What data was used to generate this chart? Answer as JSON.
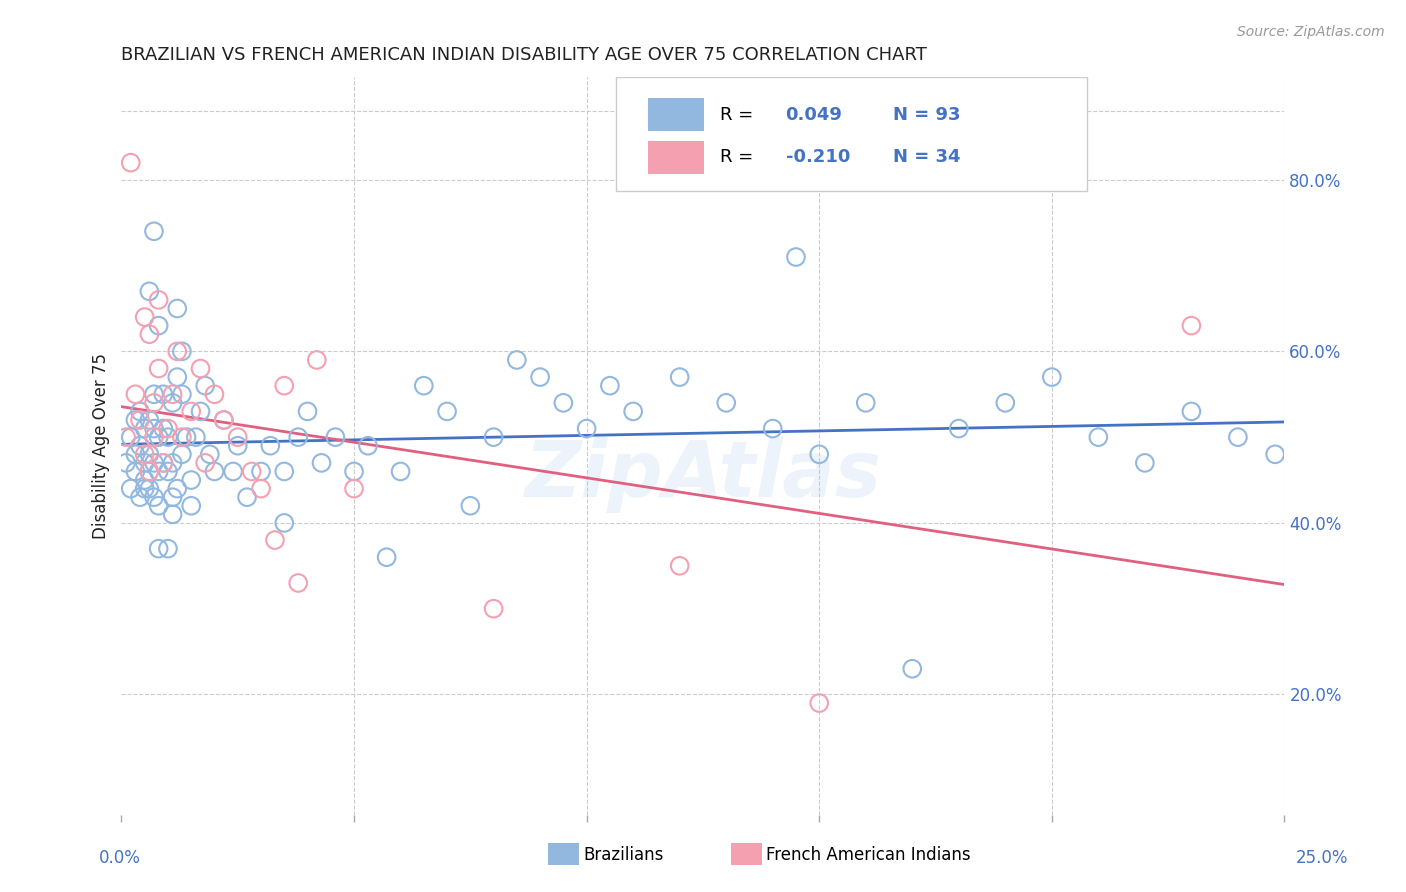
{
  "title": "BRAZILIAN VS FRENCH AMERICAN INDIAN DISABILITY AGE OVER 75 CORRELATION CHART",
  "source": "Source: ZipAtlas.com",
  "ylabel": "Disability Age Over 75",
  "watermark": "ZipAtlas",
  "legend_r_blue": "R =  0.049",
  "legend_n_blue": "N = 93",
  "legend_r_pink": "R = -0.210",
  "legend_n_pink": "N = 34",
  "blue_color": "#93B8E0",
  "pink_color": "#F4A0B0",
  "blue_line_color": "#4472C4",
  "pink_line_color": "#E06080",
  "legend_text_color": "#4472C4",
  "title_color": "#222222",
  "source_color": "#999999",
  "axis_color": "#4472C4",
  "grid_color": "#CCCCCC",
  "background_color": "#FFFFFF",
  "xlim": [
    0.0,
    0.25
  ],
  "ylim": [
    0.06,
    0.92
  ],
  "blue_x": [
    0.001,
    0.002,
    0.002,
    0.003,
    0.003,
    0.003,
    0.004,
    0.004,
    0.004,
    0.005,
    0.005,
    0.005,
    0.005,
    0.006,
    0.006,
    0.006,
    0.006,
    0.007,
    0.007,
    0.007,
    0.007,
    0.008,
    0.008,
    0.008,
    0.009,
    0.009,
    0.01,
    0.01,
    0.011,
    0.011,
    0.011,
    0.012,
    0.012,
    0.013,
    0.013,
    0.014,
    0.015,
    0.015,
    0.016,
    0.017,
    0.018,
    0.019,
    0.02,
    0.022,
    0.024,
    0.025,
    0.027,
    0.03,
    0.032,
    0.035,
    0.038,
    0.04,
    0.043,
    0.046,
    0.05,
    0.053,
    0.057,
    0.06,
    0.065,
    0.07,
    0.075,
    0.08,
    0.085,
    0.09,
    0.095,
    0.1,
    0.105,
    0.11,
    0.12,
    0.13,
    0.14,
    0.15,
    0.16,
    0.17,
    0.18,
    0.19,
    0.2,
    0.21,
    0.22,
    0.23,
    0.24,
    0.248,
    0.035,
    0.008,
    0.006,
    0.007,
    0.008,
    0.009,
    0.01,
    0.011,
    0.012,
    0.013,
    0.145
  ],
  "blue_y": [
    0.47,
    0.5,
    0.44,
    0.48,
    0.52,
    0.46,
    0.43,
    0.49,
    0.53,
    0.44,
    0.47,
    0.51,
    0.45,
    0.44,
    0.48,
    0.52,
    0.46,
    0.43,
    0.47,
    0.51,
    0.55,
    0.46,
    0.5,
    0.42,
    0.47,
    0.51,
    0.46,
    0.5,
    0.54,
    0.47,
    0.43,
    0.65,
    0.57,
    0.6,
    0.55,
    0.5,
    0.45,
    0.42,
    0.5,
    0.53,
    0.56,
    0.48,
    0.46,
    0.52,
    0.46,
    0.49,
    0.43,
    0.46,
    0.49,
    0.46,
    0.5,
    0.53,
    0.47,
    0.5,
    0.46,
    0.49,
    0.36,
    0.46,
    0.56,
    0.53,
    0.42,
    0.5,
    0.59,
    0.57,
    0.54,
    0.51,
    0.56,
    0.53,
    0.57,
    0.54,
    0.51,
    0.48,
    0.54,
    0.23,
    0.51,
    0.54,
    0.57,
    0.5,
    0.47,
    0.53,
    0.5,
    0.48,
    0.4,
    0.63,
    0.67,
    0.74,
    0.37,
    0.55,
    0.37,
    0.41,
    0.44,
    0.48,
    0.71
  ],
  "pink_x": [
    0.001,
    0.002,
    0.003,
    0.004,
    0.005,
    0.005,
    0.006,
    0.006,
    0.007,
    0.007,
    0.008,
    0.008,
    0.009,
    0.01,
    0.011,
    0.012,
    0.013,
    0.015,
    0.017,
    0.018,
    0.02,
    0.022,
    0.025,
    0.028,
    0.03,
    0.033,
    0.035,
    0.038,
    0.042,
    0.05,
    0.08,
    0.12,
    0.15,
    0.23
  ],
  "pink_y": [
    0.5,
    0.82,
    0.55,
    0.52,
    0.48,
    0.64,
    0.46,
    0.62,
    0.5,
    0.54,
    0.58,
    0.66,
    0.47,
    0.51,
    0.55,
    0.6,
    0.5,
    0.53,
    0.58,
    0.47,
    0.55,
    0.52,
    0.5,
    0.46,
    0.44,
    0.38,
    0.56,
    0.33,
    0.59,
    0.44,
    0.3,
    0.35,
    0.19,
    0.63
  ]
}
